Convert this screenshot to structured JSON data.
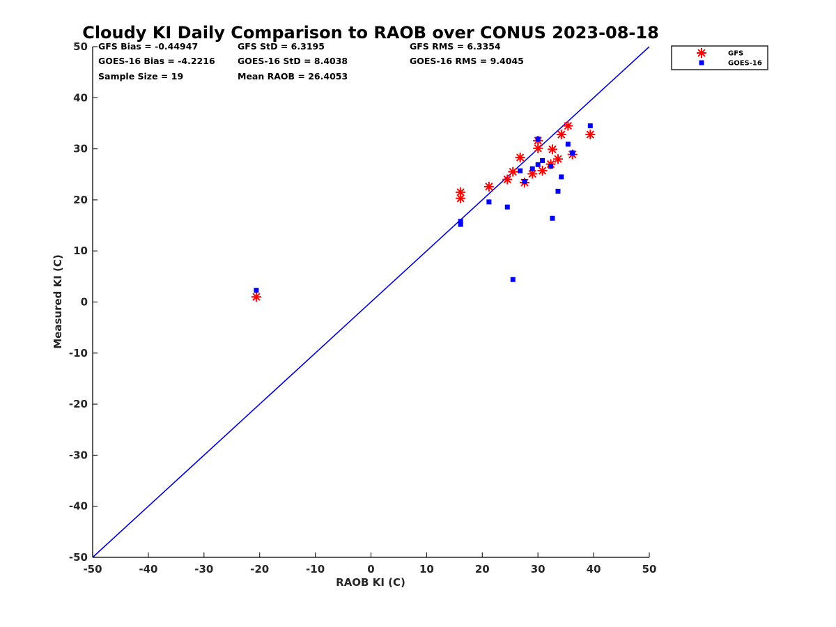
{
  "chart_data": {
    "type": "scatter",
    "title": "Cloudy KI Daily Comparison to RAOB over CONUS 2023-08-18",
    "xlabel": "RAOB KI (C)",
    "ylabel": "Measured KI (C)",
    "xlim": [
      -50,
      50
    ],
    "ylim": [
      -50,
      50
    ],
    "xticks": [
      "-50",
      "-40",
      "-30",
      "-20",
      "-10",
      "0",
      "10",
      "20",
      "30",
      "40",
      "50"
    ],
    "yticks": [
      "50",
      "40",
      "30",
      "20",
      "10",
      "0",
      "-10",
      "-20",
      "-30",
      "-40",
      "-50"
    ],
    "grid": false,
    "legend_position": "outside-top-right",
    "reference_line": {
      "x": [
        -50,
        50
      ],
      "y": [
        -50,
        50
      ],
      "color": "#0000dd"
    },
    "stats": [
      "GFS Bias = -0.44947",
      "GFS StD = 6.3195",
      "GFS RMS = 6.3354",
      "GOES-16 Bias = -4.2216",
      "GOES-16 StD = 8.4038",
      "GOES-16 RMS = 9.4045",
      "Sample Size = 19",
      "Mean RAOB = 26.4053"
    ],
    "series": [
      {
        "name": "GFS",
        "marker": "asterisk",
        "color": "#ff0000",
        "points": [
          [
            -20.6,
            1.0
          ],
          [
            16.1,
            21.5
          ],
          [
            16.1,
            20.3
          ],
          [
            21.2,
            22.6
          ],
          [
            24.5,
            24.0
          ],
          [
            25.5,
            25.5
          ],
          [
            26.8,
            28.3
          ],
          [
            27.6,
            23.4
          ],
          [
            29.0,
            25.1
          ],
          [
            30.0,
            31.6
          ],
          [
            30.0,
            30.1
          ],
          [
            30.8,
            25.7
          ],
          [
            32.3,
            27.0
          ],
          [
            32.6,
            29.9
          ],
          [
            33.6,
            28.0
          ],
          [
            34.2,
            32.8
          ],
          [
            35.4,
            34.5
          ],
          [
            36.2,
            28.9
          ],
          [
            39.4,
            32.8
          ]
        ]
      },
      {
        "name": "GOES-16",
        "marker": "square",
        "color": "#0000ff",
        "points": [
          [
            -20.6,
            2.3
          ],
          [
            16.1,
            15.8
          ],
          [
            16.1,
            15.2
          ],
          [
            21.2,
            19.6
          ],
          [
            24.5,
            18.6
          ],
          [
            25.5,
            4.4
          ],
          [
            26.8,
            25.7
          ],
          [
            27.6,
            23.6
          ],
          [
            29.0,
            26.1
          ],
          [
            30.0,
            31.9
          ],
          [
            30.0,
            26.9
          ],
          [
            30.8,
            27.7
          ],
          [
            32.3,
            26.6
          ],
          [
            32.6,
            16.4
          ],
          [
            33.6,
            21.7
          ],
          [
            34.2,
            24.5
          ],
          [
            35.4,
            30.9
          ],
          [
            36.2,
            29.2
          ],
          [
            39.4,
            34.5
          ]
        ]
      }
    ]
  }
}
